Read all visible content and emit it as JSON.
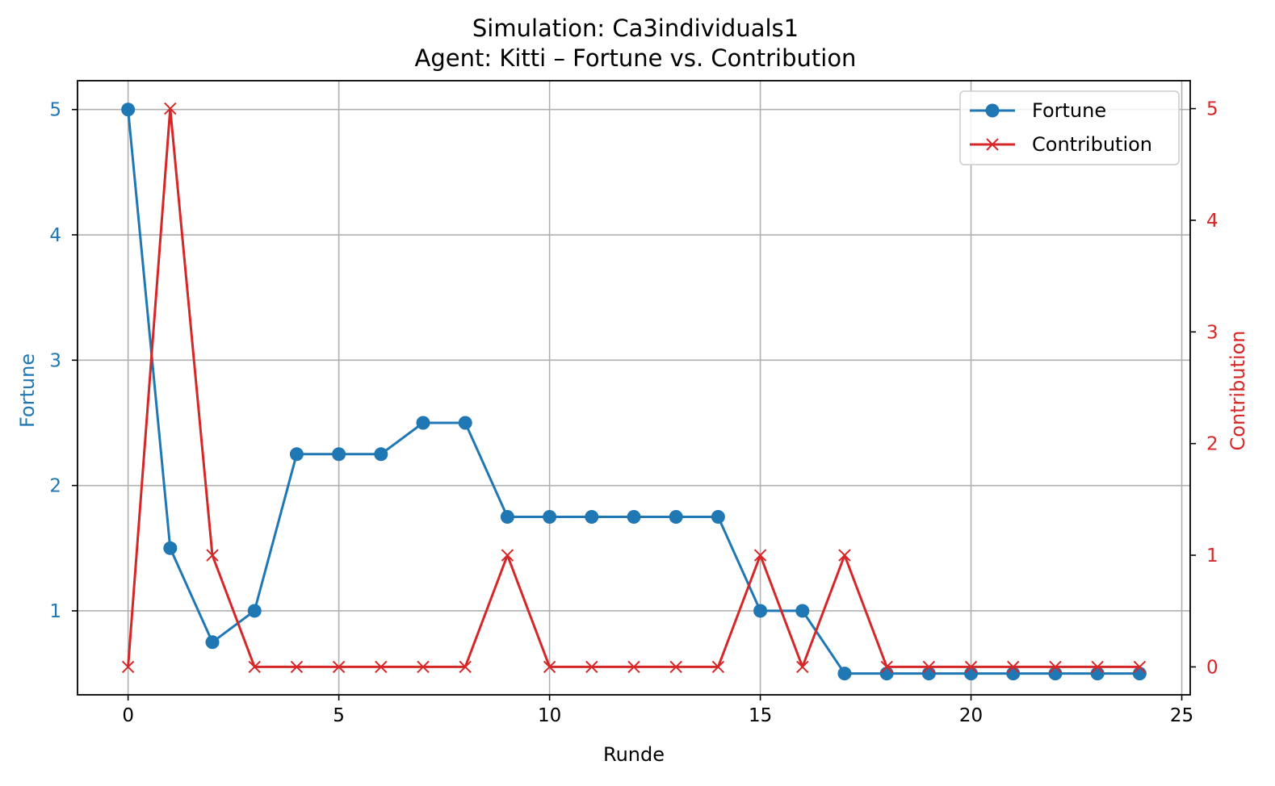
{
  "chart_data": {
    "type": "line",
    "title": "Simulation: Ca3individuals1",
    "subtitle": "Agent: Kitti – Fortune vs. Contribution",
    "xlabel": "Runde",
    "ylabel_left": "Fortune",
    "ylabel_right": "Contribution",
    "x": [
      0,
      1,
      2,
      3,
      4,
      5,
      6,
      7,
      8,
      9,
      10,
      11,
      12,
      13,
      14,
      15,
      16,
      17,
      18,
      19,
      20,
      21,
      22,
      23,
      24
    ],
    "xlim": [
      -1.2,
      25.2
    ],
    "ylim_left": [
      0.33,
      5.23
    ],
    "ylim_right": [
      -0.25,
      5.25
    ],
    "x_ticks": [
      0,
      5,
      10,
      15,
      20,
      25
    ],
    "y_ticks_left": [
      1,
      2,
      3,
      4,
      5
    ],
    "y_ticks_right": [
      0,
      1,
      2,
      3,
      4,
      5
    ],
    "grid": true,
    "legend_position": "top-right",
    "colors": {
      "left_axis": "#1f77b4",
      "right_axis": "#d62728"
    },
    "series": [
      {
        "name": "Fortune",
        "axis": "left",
        "marker": "circle",
        "color": "#1f77b4",
        "values": [
          5,
          1.5,
          0.75,
          1,
          2.25,
          2.25,
          2.25,
          2.5,
          2.5,
          1.75,
          1.75,
          1.75,
          1.75,
          1.75,
          1.75,
          1,
          1,
          0.5,
          0.5,
          0.5,
          0.5,
          0.5,
          0.5,
          0.5,
          0.5
        ]
      },
      {
        "name": "Contribution",
        "axis": "right",
        "marker": "x",
        "color": "#d62728",
        "values": [
          0,
          5,
          1,
          0,
          0,
          0,
          0,
          0,
          0,
          1,
          0,
          0,
          0,
          0,
          0,
          1,
          0,
          1,
          0,
          0,
          0,
          0,
          0,
          0,
          0
        ]
      }
    ]
  }
}
